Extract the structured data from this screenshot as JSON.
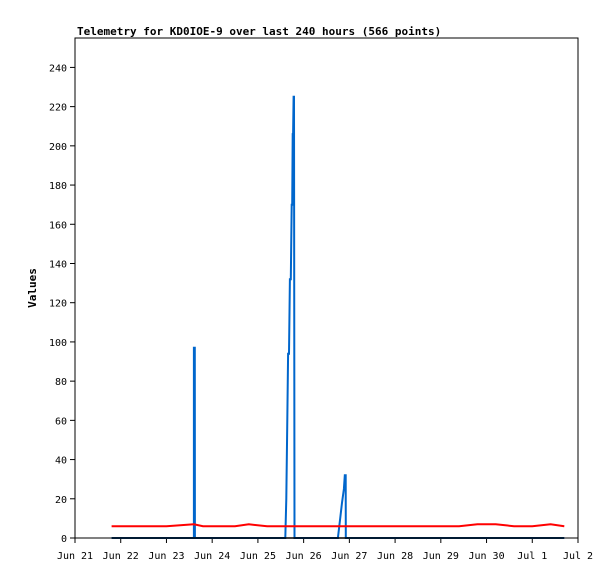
{
  "chart_data": {
    "type": "line",
    "title": "Telemetry for KD0IOE-9 over last 240 hours (566 points)",
    "xlabel": "",
    "ylabel": "Values",
    "x_ticks": [
      "Jun 21",
      "Jun 22",
      "Jun 23",
      "Jun 24",
      "Jun 25",
      "Jun 26",
      "Jun 27",
      "Jun 28",
      "Jun 29",
      "Jun 30",
      "Jul 1",
      "Jul 2"
    ],
    "x_unit": "days since Jun 21",
    "xlim": [
      0,
      11
    ],
    "ylim": [
      0,
      255
    ],
    "y_ticks": [
      0,
      20,
      40,
      60,
      80,
      100,
      120,
      140,
      160,
      180,
      200,
      220,
      240
    ],
    "grid": false,
    "legend": "none",
    "colors": {
      "blue": "#0066cc",
      "red": "#ff0000",
      "black": "#000000"
    },
    "series": [
      {
        "color": "#0066cc",
        "x": [
          0.8,
          2.6,
          2.601,
          2.62,
          2.621,
          4.6,
          4.62,
          4.64,
          4.66,
          4.68,
          4.7,
          4.72,
          4.74,
          4.75,
          4.76,
          4.77,
          4.78,
          4.79,
          4.8,
          4.81,
          4.82,
          4.83,
          4.831,
          5.75,
          5.8,
          5.84,
          5.88,
          5.9,
          5.92,
          5.921,
          10.7
        ],
        "y": [
          0,
          0,
          97,
          97,
          0,
          0,
          20,
          56,
          94,
          94,
          132,
          132,
          170,
          170,
          206,
          206,
          225,
          225,
          0,
          0,
          0,
          0,
          0,
          0,
          10,
          18,
          25,
          32,
          32,
          0,
          0
        ]
      },
      {
        "color": "#ff0000",
        "x": [
          0.8,
          1.2,
          1.5,
          2.0,
          2.6,
          2.8,
          3.2,
          3.5,
          3.8,
          4.2,
          4.6,
          5.0,
          5.5,
          6.0,
          6.5,
          7.0,
          7.5,
          8.0,
          8.4,
          8.8,
          9.2,
          9.6,
          10.0,
          10.4,
          10.7
        ],
        "y": [
          6,
          6,
          6,
          6,
          7,
          6,
          6,
          6,
          7,
          6,
          6,
          6,
          6,
          6,
          6,
          6,
          6,
          6,
          6,
          7,
          7,
          6,
          6,
          7,
          6
        ]
      },
      {
        "color": "#000000",
        "x": [
          0.8,
          10.7
        ],
        "y": [
          0,
          0
        ]
      }
    ]
  }
}
